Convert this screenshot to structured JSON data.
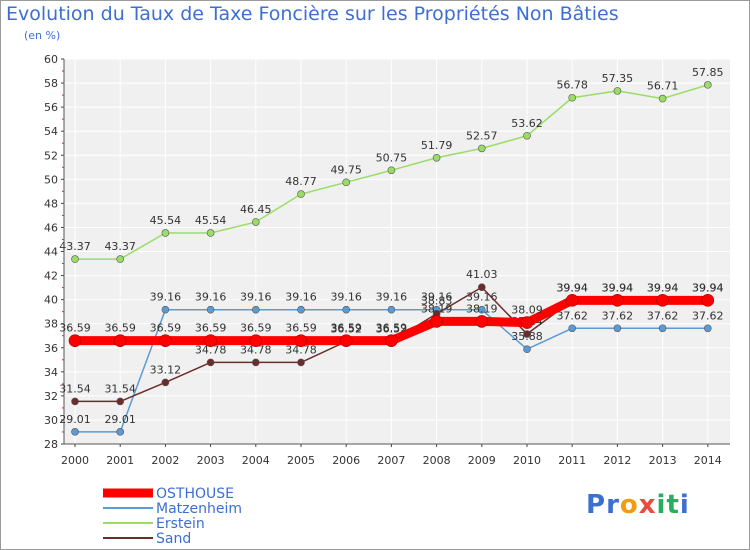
{
  "page": {
    "title": "Evolution du Taux de Taxe Foncière sur les Propriétés Non Bâties",
    "unit": "(en %)",
    "brand": "Proxiti"
  },
  "colors": {
    "background": "#f0f0f0",
    "grid": "#ffffff",
    "title": "#3c6fd1",
    "OSTHOUSE": "#ff0000",
    "Matzenheim": "#5b9bd5",
    "Erstein": "#99dd66",
    "Sand": "#6b2c2c"
  },
  "chart_data": {
    "type": "line",
    "title": "Evolution du Taux de Taxe Foncière sur les Propriétés Non Bâties",
    "ylabel": "(en %)",
    "xlabel": "",
    "ylim": [
      28,
      60
    ],
    "yticks": [
      28,
      30,
      32,
      34,
      36,
      38,
      40,
      42,
      44,
      46,
      48,
      50,
      52,
      54,
      56,
      58,
      60
    ],
    "grid": true,
    "legend_position": "bottom-left",
    "x": [
      "2000",
      "2001",
      "2002",
      "2003",
      "2004",
      "2005",
      "2006",
      "2007",
      "2008",
      "2009",
      "2010",
      "2011",
      "2012",
      "2013",
      "2014"
    ],
    "series": [
      {
        "name": "OSTHOUSE",
        "color": "#ff0000",
        "thick": true,
        "values": [
          36.59,
          36.59,
          36.59,
          36.59,
          36.59,
          36.59,
          36.59,
          36.59,
          38.19,
          38.19,
          38.09,
          39.94,
          39.94,
          39.94,
          39.94
        ],
        "labels": [
          "36.59",
          "36.59",
          "36.59",
          "36.59",
          "36.59",
          "36.59",
          "36.59",
          "36.59",
          "38.19",
          "38.19",
          "38.09",
          "39.94",
          "39.94",
          "39.94",
          "39.94"
        ]
      },
      {
        "name": "Matzenheim",
        "color": "#5b9bd5",
        "thick": false,
        "values": [
          29.01,
          29.01,
          39.16,
          39.16,
          39.16,
          39.16,
          39.16,
          39.16,
          39.16,
          39.16,
          35.88,
          37.62,
          37.62,
          37.62,
          37.62
        ],
        "labels": [
          "29.01",
          "29.01",
          "39.16",
          "39.16",
          "39.16",
          "39.16",
          "39.16",
          "39.16",
          "39.16",
          "39.16",
          "35.88",
          "37.62",
          "37.62",
          "37.62",
          "37.62"
        ]
      },
      {
        "name": "Erstein",
        "color": "#99dd66",
        "thick": false,
        "values": [
          43.37,
          43.37,
          45.54,
          45.54,
          46.45,
          48.77,
          49.75,
          50.75,
          51.79,
          52.57,
          53.62,
          56.78,
          57.35,
          56.71,
          57.85
        ],
        "labels": [
          "43.37",
          "43.37",
          "45.54",
          "45.54",
          "46.45",
          "48.77",
          "49.75",
          "50.75",
          "51.79",
          "52.57",
          "53.62",
          "56.78",
          "57.35",
          "56.71",
          "57.85"
        ]
      },
      {
        "name": "Sand",
        "color": "#6b2c2c",
        "thick": false,
        "values": [
          31.54,
          31.54,
          33.12,
          34.78,
          34.78,
          34.78,
          36.52,
          36.52,
          38.83,
          41.03,
          37.14,
          39.94,
          39.94,
          39.94,
          39.94
        ],
        "labels": [
          "31.54",
          "31.54",
          "33.12",
          "34.78",
          "34.78",
          "34.78",
          "36.52",
          "36.52",
          "38.83",
          "41.03",
          "37.14",
          "39.94",
          "39.94",
          "39.94",
          "39.94"
        ]
      }
    ]
  }
}
